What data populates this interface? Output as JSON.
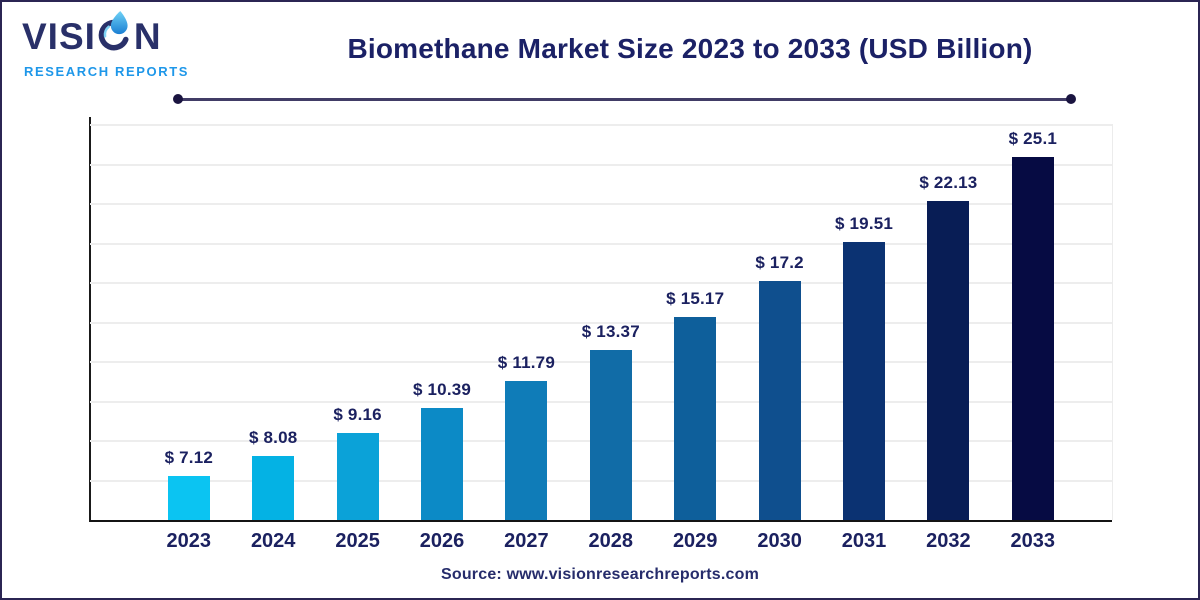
{
  "logo": {
    "wordmark_prefix": "VISI",
    "wordmark_suffix": "N",
    "subtitle": "RESEARCH REPORTS",
    "colors": {
      "wordmark": "#293069",
      "subtitle": "#1E97E9",
      "droplet_light": "#6FD2F6",
      "droplet_dark": "#1B7FD3",
      "swoosh": "#293069"
    }
  },
  "header": {
    "title": "Biomethane Market Size 2023 to 2033 (USD Billion)",
    "title_color": "#1B2166"
  },
  "chart_data": {
    "type": "bar",
    "title": "Biomethane Market Size 2023 to 2033 (USD Billion)",
    "unit": "USD Billion",
    "currency_prefix": "$ ",
    "categories": [
      "2023",
      "2024",
      "2025",
      "2026",
      "2027",
      "2028",
      "2029",
      "2030",
      "2031",
      "2032",
      "2033"
    ],
    "values": [
      7.12,
      8.08,
      9.16,
      10.39,
      11.79,
      13.37,
      15.17,
      17.2,
      19.51,
      22.13,
      25.1
    ],
    "display_labels": [
      "$ 7.12",
      "$ 8.08",
      "$ 9.16",
      "$ 10.39",
      "$ 11.79",
      "$ 13.37",
      "$ 15.17",
      "$ 17.2",
      "$ 19.51",
      "$ 22.13",
      "$ 25.1"
    ],
    "bar_colors": [
      "#0BC4F2",
      "#04B2E4",
      "#0BA2D8",
      "#0C8AC6",
      "#0F7CB8",
      "#116CA7",
      "#0E5F9B",
      "#0F4F8E",
      "#0B3272",
      "#081D55",
      "#060B43"
    ],
    "grid": true,
    "gridline_color": "#EDEDED",
    "axis_color": "#141414",
    "label_color": "#1B2160",
    "xlabel": "",
    "ylabel": "",
    "legend": "none"
  },
  "footer": {
    "source": "Source: www.visionresearchreports.com",
    "color": "#262C6B"
  }
}
